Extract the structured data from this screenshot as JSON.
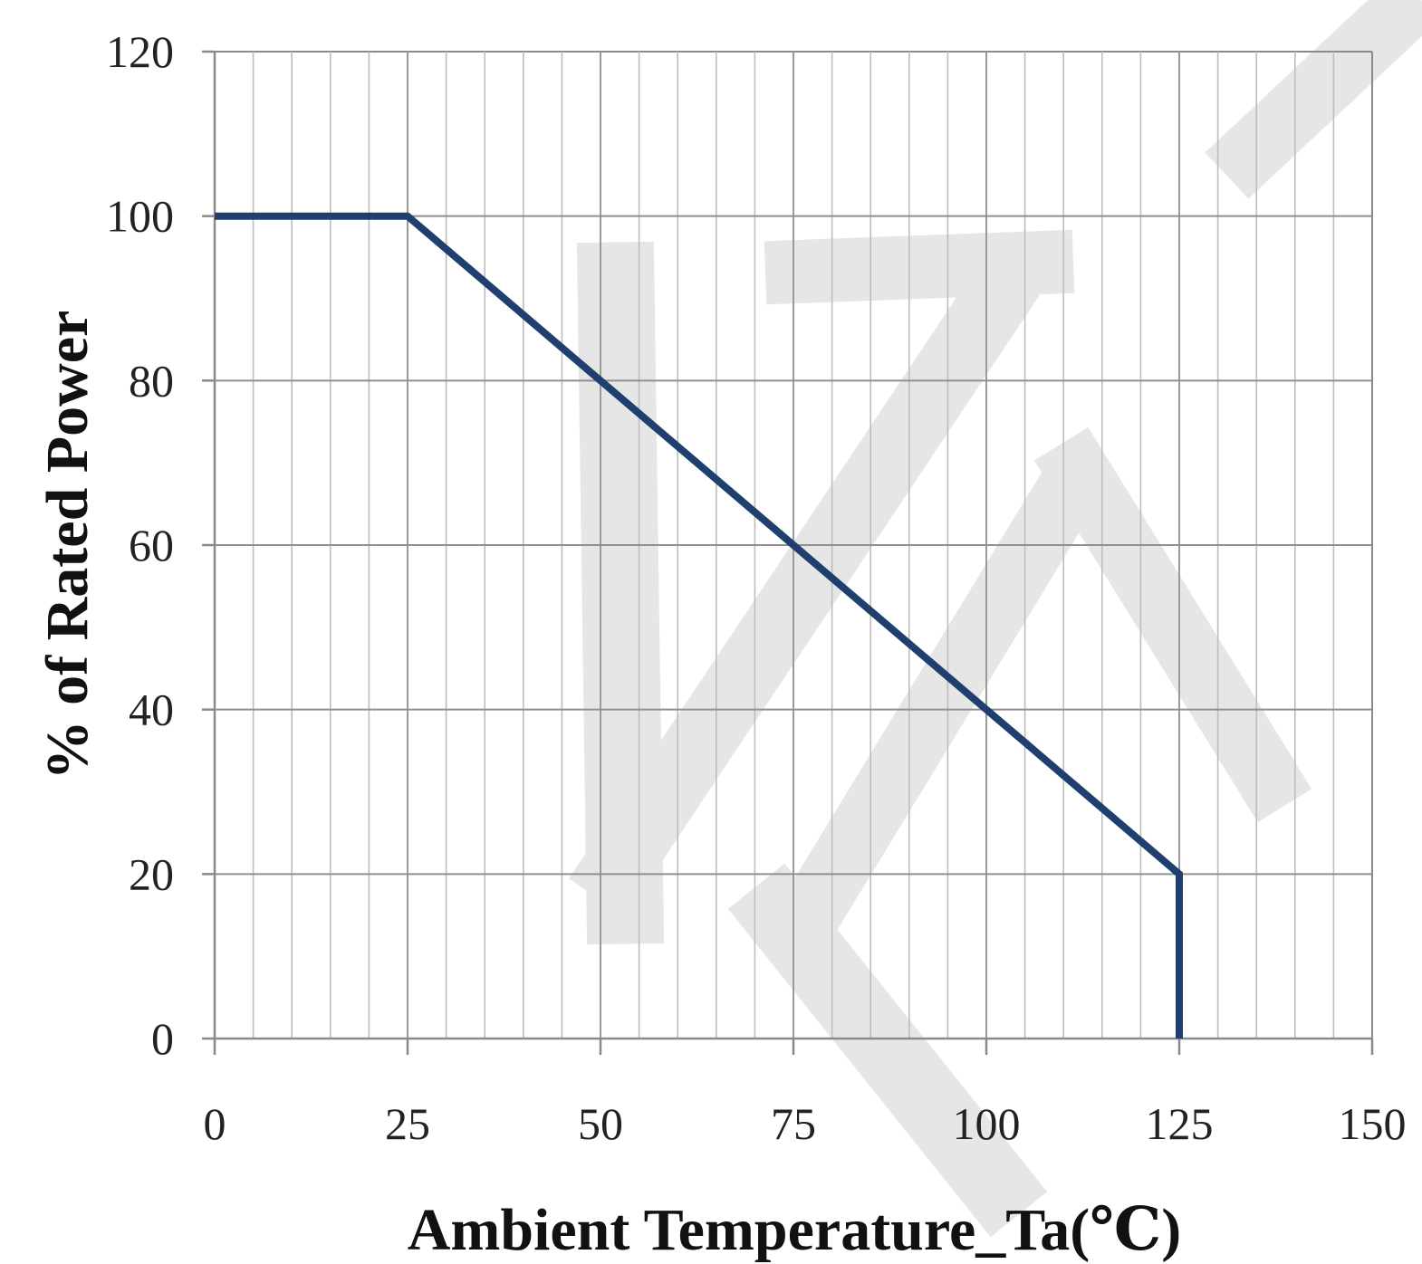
{
  "chart_data": {
    "type": "line",
    "title": "",
    "xlabel": "Ambient  Temperature_Ta(℃)",
    "ylabel": "% of Rated Power",
    "xlim": [
      0,
      150
    ],
    "ylim": [
      0,
      120
    ],
    "x_ticks": [
      0,
      25,
      50,
      75,
      100,
      125,
      150
    ],
    "y_ticks": [
      0,
      20,
      40,
      60,
      80,
      100,
      120
    ],
    "x_minor_step": 5,
    "grid": true,
    "legend": "none",
    "series": [
      {
        "color": "#1f3f6e",
        "x": [
          0,
          25,
          125,
          125
        ],
        "y": [
          100,
          100,
          20,
          0
        ]
      }
    ]
  }
}
